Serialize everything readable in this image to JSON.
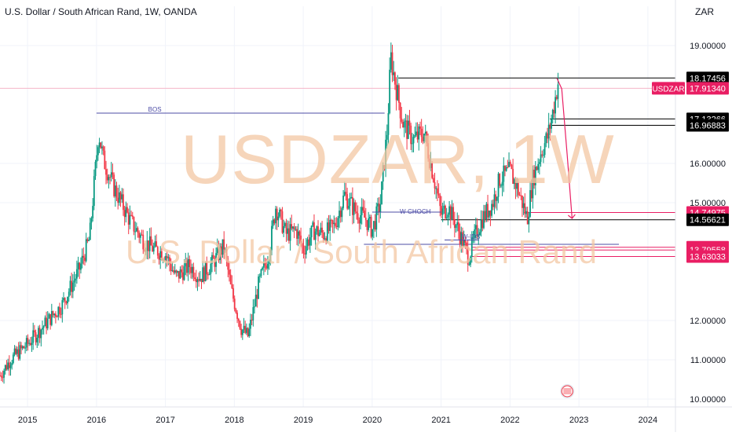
{
  "header": {
    "title": "U.S. Dollar / South African Rand, 1W, OANDA",
    "currency": "ZAR"
  },
  "watermark": {
    "symbol": "USDZAR, 1W",
    "name": "U.S. Dollar / South African Rand"
  },
  "colors": {
    "up": "#089981",
    "down": "#f23645",
    "watermark": "#f3c8a4",
    "bos_line": "#4c4ca6",
    "level_pink": "#e91e63",
    "level_black": "#000000",
    "arrow": "#e91e63"
  },
  "chart_data": {
    "type": "candlestick",
    "symbol": "USDZAR",
    "timeframe": "1W",
    "source": "OANDA",
    "y_axis": {
      "ticks": [
        "19.00000",
        "16.00000",
        "15.00000",
        "12.00000",
        "11.00000",
        "10.00000"
      ],
      "ylim": [
        9.8,
        19.6
      ]
    },
    "x_axis": {
      "ticks": [
        "2015",
        "2016",
        "2017",
        "2018",
        "2019",
        "2020",
        "2021",
        "2022",
        "2023",
        "2024"
      ],
      "xlim": [
        2014.6,
        2024.4
      ]
    },
    "price_labels": [
      {
        "value": 18.17456,
        "text": "18.17456",
        "style": "dark"
      },
      {
        "value": 17.9134,
        "text": "17.91340",
        "style": "pink",
        "symbol": "USDZAR"
      },
      {
        "value": 17.13266,
        "text": "17.13266",
        "style": "dark"
      },
      {
        "value": 16.96883,
        "text": "16.96883",
        "style": "dark"
      },
      {
        "value": 14.74975,
        "text": "14.74975",
        "style": "pink"
      },
      {
        "value": 14.56621,
        "text": "14.56621",
        "style": "dark"
      },
      {
        "value": 13.86451,
        "text": "13.86451",
        "style": "pink"
      },
      {
        "value": 13.79558,
        "text": "13.79558",
        "style": "pink"
      },
      {
        "value": 13.63033,
        "text": "13.63033",
        "style": "pink"
      }
    ],
    "levels": [
      {
        "value": 17.9134,
        "x_start": 2014.6,
        "x_end": 2024.4,
        "color": "#f5b5c8"
      },
      {
        "value": 18.17456,
        "x_start": 2020.38,
        "x_end": 2024.4,
        "color": "#000000"
      },
      {
        "value": 17.13266,
        "x_start": 2022.58,
        "x_end": 2024.4,
        "color": "#000000"
      },
      {
        "value": 16.96883,
        "x_start": 2022.58,
        "x_end": 2024.4,
        "color": "#000000"
      },
      {
        "value": 14.74975,
        "x_start": 2022.2,
        "x_end": 2024.4,
        "color": "#e91e63"
      },
      {
        "value": 14.56621,
        "x_start": 2021.0,
        "x_end": 2024.4,
        "color": "#000000"
      },
      {
        "value": 13.94,
        "x_start": 2019.88,
        "x_end": 2023.58,
        "color": "#4c4ca6"
      },
      {
        "value": 13.86451,
        "x_start": 2021.45,
        "x_end": 2024.4,
        "color": "#e91e63"
      },
      {
        "value": 13.79558,
        "x_start": 2021.45,
        "x_end": 2024.4,
        "color": "#e91e63"
      },
      {
        "value": 13.63033,
        "x_start": 2021.45,
        "x_end": 2024.4,
        "color": "#e91e63"
      }
    ],
    "annotations": [
      {
        "text": "BOS",
        "x": 2016.75,
        "y": 17.32,
        "line": {
          "x1": 2016.0,
          "x2": 2020.18,
          "y": 17.28
        }
      },
      {
        "text": "W-CHOCH",
        "x": 2020.4,
        "y": 14.72,
        "line": {
          "x1": 2020.0,
          "x2": 2021.0,
          "y": 14.76
        }
      },
      {
        "text": "W-IDS",
        "x": 2021.3,
        "y": 14.08,
        "line": {
          "x1": 2021.05,
          "x2": 2021.55,
          "y": 14.05
        }
      }
    ],
    "projection": {
      "points": [
        [
          2022.68,
          18.17
        ],
        [
          2022.75,
          17.9
        ],
        [
          2022.83,
          16.2
        ],
        [
          2022.9,
          14.6
        ]
      ]
    },
    "anchors": [
      [
        2014.6,
        10.6
      ],
      [
        2014.75,
        11.0
      ],
      [
        2015.0,
        11.4
      ],
      [
        2015.25,
        11.9
      ],
      [
        2015.5,
        12.4
      ],
      [
        2015.75,
        13.3
      ],
      [
        2015.9,
        14.1
      ],
      [
        2016.03,
        16.8
      ],
      [
        2016.1,
        16.1
      ],
      [
        2016.25,
        15.4
      ],
      [
        2016.5,
        14.5
      ],
      [
        2016.7,
        14.0
      ],
      [
        2016.85,
        13.8
      ],
      [
        2017.0,
        13.7
      ],
      [
        2017.15,
        13.1
      ],
      [
        2017.35,
        13.4
      ],
      [
        2017.5,
        13.1
      ],
      [
        2017.7,
        13.5
      ],
      [
        2017.85,
        13.9
      ],
      [
        2017.95,
        12.8
      ],
      [
        2018.1,
        11.8
      ],
      [
        2018.2,
        11.6
      ],
      [
        2018.35,
        12.9
      ],
      [
        2018.5,
        13.7
      ],
      [
        2018.6,
        14.9
      ],
      [
        2018.75,
        14.2
      ],
      [
        2018.9,
        14.3
      ],
      [
        2019.0,
        13.8
      ],
      [
        2019.15,
        14.3
      ],
      [
        2019.3,
        14.2
      ],
      [
        2019.45,
        14.4
      ],
      [
        2019.6,
        15.2
      ],
      [
        2019.75,
        14.8
      ],
      [
        2019.9,
        14.6
      ],
      [
        2020.0,
        14.3
      ],
      [
        2020.12,
        15.0
      ],
      [
        2020.22,
        16.9
      ],
      [
        2020.27,
        18.7
      ],
      [
        2020.33,
        18.1
      ],
      [
        2020.45,
        17.0
      ],
      [
        2020.6,
        16.6
      ],
      [
        2020.75,
        16.8
      ],
      [
        2020.9,
        15.6
      ],
      [
        2021.0,
        14.7
      ],
      [
        2021.1,
        14.9
      ],
      [
        2021.25,
        14.3
      ],
      [
        2021.4,
        13.6
      ],
      [
        2021.5,
        14.2
      ],
      [
        2021.6,
        14.6
      ],
      [
        2021.75,
        15.0
      ],
      [
        2021.85,
        15.6
      ],
      [
        2022.0,
        15.8
      ],
      [
        2022.1,
        15.4
      ],
      [
        2022.25,
        14.6
      ],
      [
        2022.33,
        15.6
      ],
      [
        2022.45,
        16.3
      ],
      [
        2022.55,
        16.7
      ],
      [
        2022.62,
        17.3
      ],
      [
        2022.7,
        18.1
      ]
    ]
  }
}
